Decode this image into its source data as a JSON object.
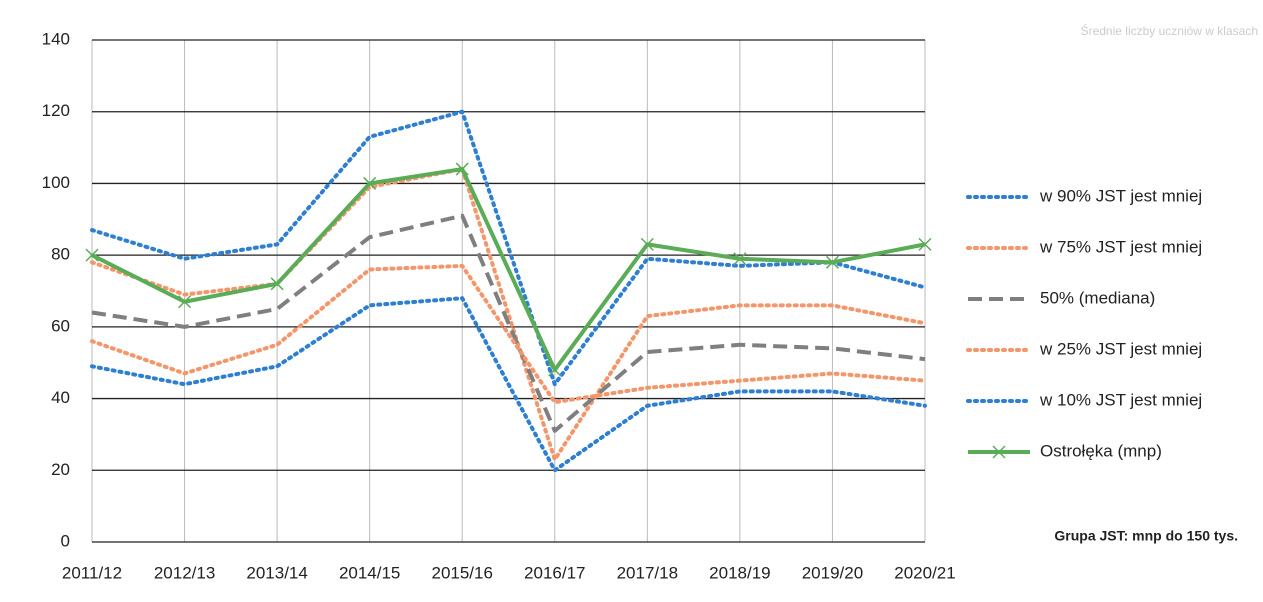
{
  "chart_data": {
    "type": "line",
    "subtitle": "Średnie liczby uczniów w klasach",
    "annotation": "Grupa JST: mnp do 150 tys.",
    "categories": [
      "2011/12",
      "2012/13",
      "2013/14",
      "2014/15",
      "2015/16",
      "2016/17",
      "2017/18",
      "2018/19",
      "2019/20",
      "2020/21"
    ],
    "series": [
      {
        "name": "w 90% JST jest mniej",
        "color": "#2e7fd1",
        "style": "dotted",
        "values": [
          87,
          79,
          83,
          113,
          120,
          44,
          79,
          77,
          78,
          71
        ]
      },
      {
        "name": "w 75% JST jest mniej",
        "color": "#f4956a",
        "style": "dotted",
        "values": [
          78,
          69,
          72,
          99,
          104,
          23,
          63,
          66,
          66,
          61
        ]
      },
      {
        "name": "50% (mediana)",
        "color": "#7f7f7f",
        "style": "dashed",
        "values": [
          64,
          60,
          65,
          85,
          91,
          31,
          53,
          55,
          54,
          51
        ]
      },
      {
        "name": "w 25% JST jest mniej",
        "color": "#f4956a",
        "style": "dotted",
        "values": [
          56,
          47,
          55,
          76,
          77,
          39,
          43,
          45,
          47,
          45
        ]
      },
      {
        "name": "w 10% JST jest mniej",
        "color": "#2e7fd1",
        "style": "dotted",
        "values": [
          49,
          44,
          49,
          66,
          68,
          20,
          38,
          42,
          42,
          38
        ]
      },
      {
        "name": "Ostrołęka (mnp)",
        "color": "#5aac57",
        "style": "solid",
        "marker": "x",
        "values": [
          80,
          67,
          72,
          100,
          104,
          48,
          83,
          79,
          78,
          83
        ]
      }
    ],
    "ylim": [
      0,
      140
    ],
    "yticks": [
      0,
      20,
      40,
      60,
      80,
      100,
      120,
      140
    ],
    "grid": true
  }
}
